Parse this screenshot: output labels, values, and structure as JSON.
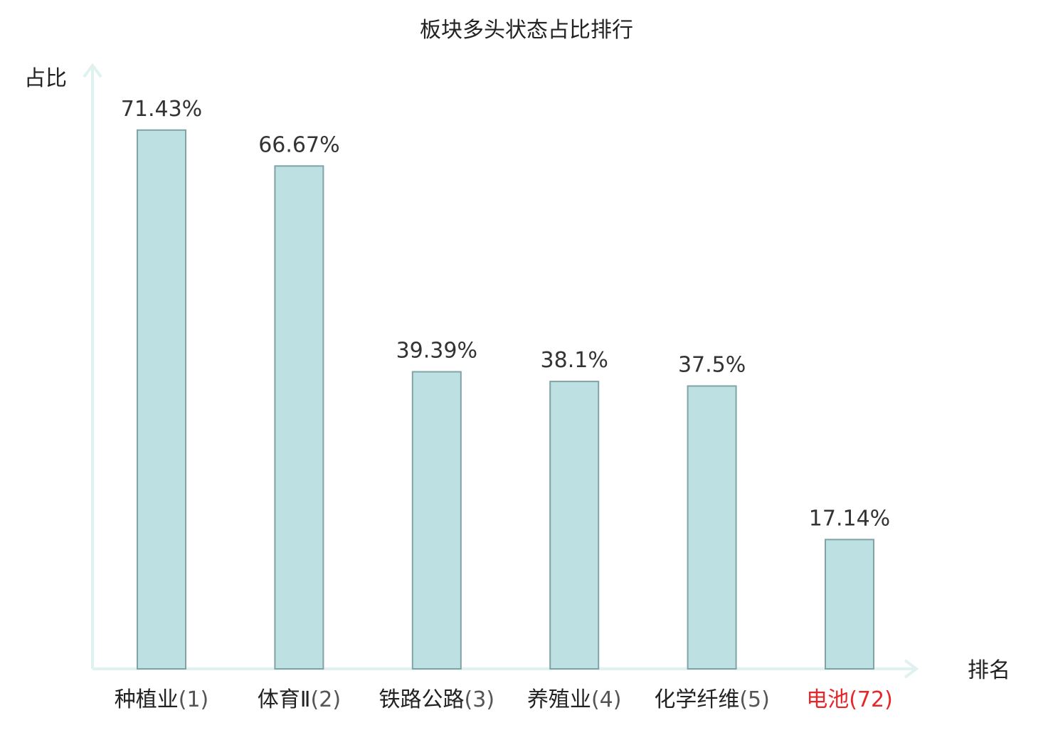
{
  "chart_data": {
    "type": "bar",
    "title": "板块多头状态占比排行",
    "ylabel": "占比",
    "xlabel": "排名",
    "categories": [
      "种植业",
      "体育Ⅱ",
      "铁路公路",
      "养殖业",
      "化学纤维",
      "电池"
    ],
    "ranks": [
      "(1)",
      "(2)",
      "(3)",
      "(4)",
      "(5)",
      "(72)"
    ],
    "values": [
      71.43,
      66.67,
      39.39,
      38.1,
      37.5,
      17.14
    ],
    "value_labels": [
      "71.43%",
      "66.67%",
      "39.39%",
      "38.1%",
      "37.5%",
      "17.14%"
    ],
    "highlight_index": 5,
    "ylim": [
      0,
      80
    ],
    "grid": false,
    "colors": {
      "bar_fill": "#bde0e3",
      "bar_stroke": "#7fa3a6",
      "axis": "#e0f2f0",
      "highlight": "#e8262a"
    }
  }
}
